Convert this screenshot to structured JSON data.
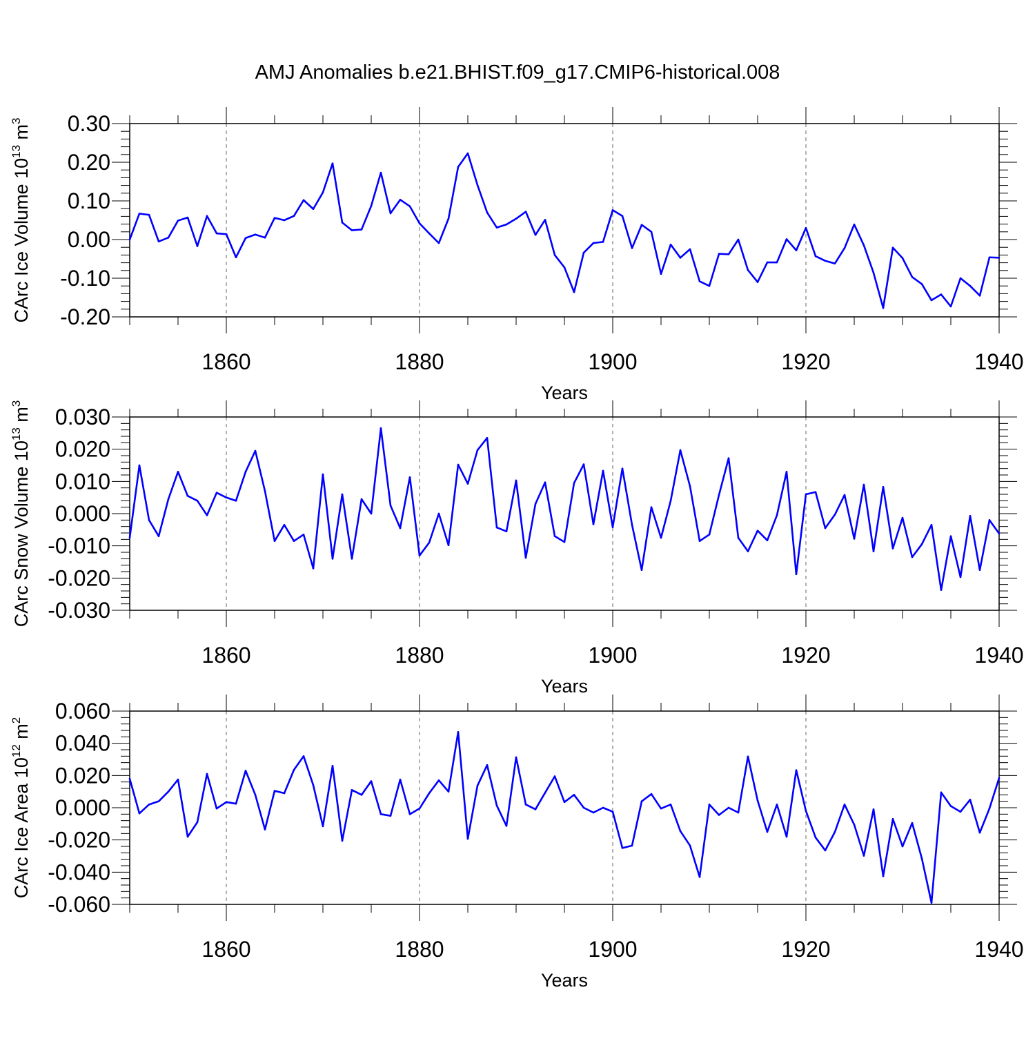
{
  "figure_title": "AMJ Anomalies b.e21.BHIST.f09_g17.CMIP6-historical.008",
  "colors": {
    "line": "#0000ff",
    "axis": "#000000",
    "grid": "#666666"
  },
  "chart_data": [
    {
      "type": "line",
      "name": "ice-volume",
      "title": "AMJ Anomalies b.e21.BHIST.f09_g17.CMIP6-historical.008",
      "ylabel": "CArc Ice Volume 10",
      "ylabel_exp": "13",
      "ylabel_unit": "m",
      "ylabel_unit_exp": "3",
      "xlabel": "Years",
      "xlim": [
        1850,
        1940
      ],
      "ylim": [
        -0.2,
        0.3
      ],
      "xticks": [
        1860,
        1880,
        1900,
        1920,
        1940
      ],
      "xtick_labels": [
        "1860",
        "1880",
        "1900",
        "1920",
        "1940"
      ],
      "yticks": [
        -0.2,
        -0.1,
        0.0,
        0.1,
        0.2,
        0.3
      ],
      "ytick_labels": [
        "-0.20",
        "-0.10",
        "0.00",
        "0.10",
        "0.20",
        "0.30"
      ],
      "grid": "dashed vertical at major x ticks",
      "series": [
        {
          "name": "ice volume anomaly",
          "x_start": 1850,
          "values": [
            0.0,
            0.067,
            0.064,
            -0.005,
            0.005,
            0.049,
            0.057,
            -0.017,
            0.061,
            0.016,
            0.014,
            -0.046,
            0.004,
            0.013,
            0.005,
            0.056,
            0.05,
            0.061,
            0.102,
            0.079,
            0.122,
            0.197,
            0.044,
            0.024,
            0.026,
            0.087,
            0.173,
            0.068,
            0.103,
            0.086,
            0.042,
            0.016,
            -0.009,
            0.054,
            0.188,
            0.223,
            0.141,
            0.07,
            0.031,
            0.039,
            0.054,
            0.072,
            0.012,
            0.051,
            -0.04,
            -0.072,
            -0.136,
            -0.034,
            -0.009,
            -0.006,
            0.076,
            0.061,
            -0.022,
            0.038,
            0.02,
            -0.089,
            -0.013,
            -0.047,
            -0.025,
            -0.108,
            -0.12,
            -0.037,
            -0.038,
            0.0,
            -0.079,
            -0.11,
            -0.059,
            -0.059,
            0.001,
            -0.028,
            0.03,
            -0.043,
            -0.055,
            -0.062,
            -0.022,
            0.039,
            -0.015,
            -0.086,
            -0.177,
            -0.021,
            -0.048,
            -0.097,
            -0.115,
            -0.157,
            -0.142,
            -0.173,
            -0.1,
            -0.12,
            -0.145,
            -0.046,
            -0.047
          ]
        }
      ]
    },
    {
      "type": "line",
      "name": "snow-volume",
      "ylabel": "CArc Snow Volume 10",
      "ylabel_exp": "13",
      "ylabel_unit": "m",
      "ylabel_unit_exp": "3",
      "xlabel": "Years",
      "xlim": [
        1850,
        1940
      ],
      "ylim": [
        -0.03,
        0.03
      ],
      "xticks": [
        1860,
        1880,
        1900,
        1920,
        1940
      ],
      "xtick_labels": [
        "1860",
        "1880",
        "1900",
        "1920",
        "1940"
      ],
      "yticks": [
        -0.03,
        -0.02,
        -0.01,
        0.0,
        0.01,
        0.02,
        0.03
      ],
      "ytick_labels": [
        "-0.030",
        "-0.020",
        "-0.010",
        "0.000",
        "0.010",
        "0.020",
        "0.030"
      ],
      "grid": "dashed vertical at major x ticks",
      "series": [
        {
          "name": "snow volume anomaly",
          "x_start": 1850,
          "values": [
            -0.0075,
            0.015,
            -0.002,
            -0.007,
            0.0045,
            0.013,
            0.0055,
            0.004,
            -0.0005,
            0.0065,
            0.005,
            0.004,
            0.013,
            0.0195,
            0.007,
            -0.0085,
            -0.0035,
            -0.0085,
            -0.0065,
            -0.017,
            0.0122,
            -0.014,
            0.006,
            -0.014,
            0.0045,
            0.0,
            0.0265,
            0.0025,
            -0.0045,
            0.0113,
            -0.013,
            -0.009,
            0.0,
            -0.0098,
            0.0152,
            0.0093,
            0.0197,
            0.0235,
            -0.0043,
            -0.0055,
            0.0103,
            -0.0137,
            0.003,
            0.0097,
            -0.007,
            -0.0088,
            0.0095,
            0.0153,
            -0.0033,
            0.0133,
            -0.0042,
            0.014,
            -0.0035,
            -0.0175,
            0.002,
            -0.0075,
            0.004,
            0.0197,
            0.0085,
            -0.0085,
            -0.0065,
            0.0058,
            0.0172,
            -0.0075,
            -0.0117,
            -0.0053,
            -0.0083,
            -0.0005,
            0.013,
            -0.0188,
            0.006,
            0.0067,
            -0.0045,
            -0.0003,
            0.0058,
            -0.0078,
            0.009,
            -0.0117,
            0.0083,
            -0.0108,
            -0.0013,
            -0.0135,
            -0.0095,
            -0.0035,
            -0.0237,
            -0.007,
            -0.0197,
            -0.0007,
            -0.0175,
            -0.002,
            -0.0062
          ]
        }
      ]
    },
    {
      "type": "line",
      "name": "ice-area",
      "ylabel": "CArc Ice Area 10",
      "ylabel_exp": "12",
      "ylabel_unit": "m",
      "ylabel_unit_exp": "2",
      "xlabel": "Years",
      "xlim": [
        1850,
        1940
      ],
      "ylim": [
        -0.06,
        0.06
      ],
      "xticks": [
        1860,
        1880,
        1900,
        1920,
        1940
      ],
      "xtick_labels": [
        "1860",
        "1880",
        "1900",
        "1920",
        "1940"
      ],
      "yticks": [
        -0.06,
        -0.04,
        -0.02,
        0.0,
        0.02,
        0.04,
        0.06
      ],
      "ytick_labels": [
        "-0.060",
        "-0.040",
        "-0.020",
        "0.000",
        "0.020",
        "0.040",
        "0.060"
      ],
      "grid": "dashed vertical at major x ticks",
      "series": [
        {
          "name": "ice area anomaly",
          "x_start": 1850,
          "values": [
            0.018,
            -0.0035,
            0.002,
            0.004,
            0.01,
            0.0175,
            -0.018,
            -0.009,
            0.021,
            -0.0005,
            0.0035,
            0.0025,
            0.023,
            0.008,
            -0.0135,
            0.0105,
            0.009,
            0.0235,
            0.032,
            0.014,
            -0.0115,
            0.026,
            -0.0205,
            0.011,
            0.008,
            0.0165,
            -0.004,
            -0.005,
            0.0175,
            -0.004,
            -0.0005,
            0.009,
            0.017,
            0.01,
            0.047,
            -0.0193,
            0.0137,
            0.0265,
            0.0013,
            -0.0113,
            0.0313,
            0.002,
            -0.001,
            0.0093,
            0.0195,
            0.0035,
            0.008,
            0.0,
            -0.003,
            0.0,
            -0.0025,
            -0.025,
            -0.0235,
            0.004,
            0.0085,
            -0.0005,
            0.002,
            -0.0145,
            -0.0235,
            -0.043,
            0.002,
            -0.0045,
            0.0,
            -0.003,
            0.0318,
            0.0045,
            -0.015,
            0.002,
            -0.018,
            0.0233,
            -0.002,
            -0.0185,
            -0.0265,
            -0.015,
            0.002,
            -0.0105,
            -0.0298,
            -0.001,
            -0.0425,
            -0.007,
            -0.024,
            -0.0095,
            -0.0315,
            -0.059,
            0.0095,
            0.001,
            -0.0025,
            0.005,
            -0.0155,
            -0.0005,
            0.0185
          ]
        }
      ]
    }
  ]
}
